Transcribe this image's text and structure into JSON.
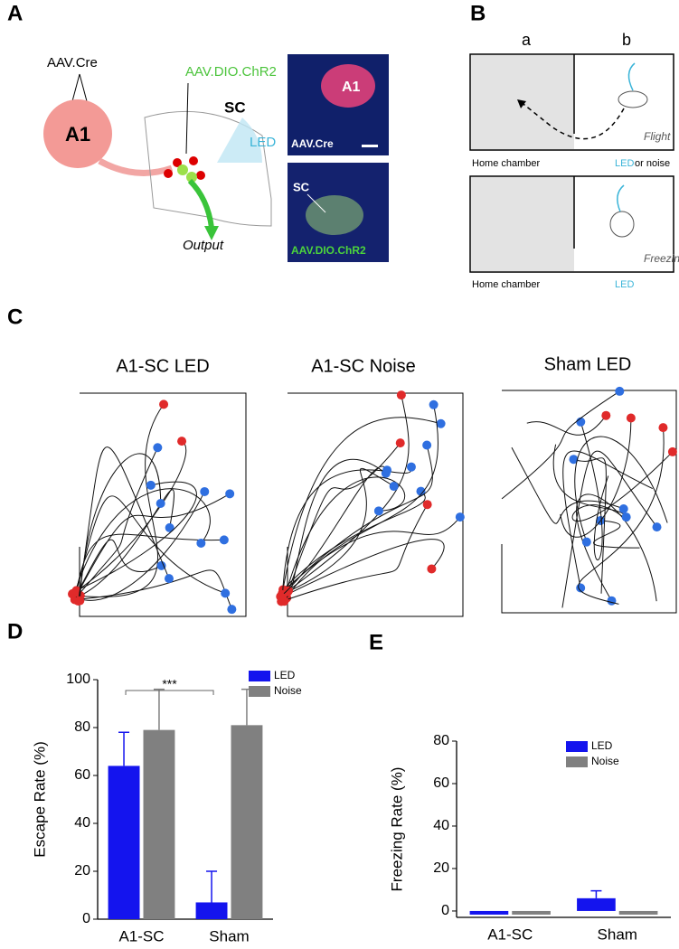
{
  "panel_a": {
    "label": "A",
    "virus_1": "AAV.Cre",
    "region_1": "A1",
    "virus_2": "AAV.DIO.ChR2",
    "region_2": "SC",
    "light": "LED",
    "output": "Output",
    "image_1_region": "A1",
    "image_1_label": "AAV.Cre",
    "image_2_region": "SC",
    "image_2_label": "AAV.DIO.ChR2"
  },
  "panel_b": {
    "label": "B",
    "zone_a": "a",
    "zone_b": "b",
    "flight": "Flight",
    "freezing": "Freezing",
    "home_1": "Home chamber",
    "stim_led": "LED",
    "stim_noise": "or noise",
    "home_2": "Home chamber",
    "stim_led_2": "LED"
  },
  "panel_c": {
    "label": "C",
    "titles": [
      "A1-SC LED",
      "A1-SC Noise",
      "Sham LED"
    ]
  },
  "chart_data": [
    {
      "type": "bar",
      "panel": "D",
      "ylabel": "Escape Rate (%)",
      "categories": [
        "A1-SC",
        "Sham"
      ],
      "series": [
        {
          "name": "LED",
          "color": "#1414ee",
          "values": [
            64,
            7
          ],
          "errors": [
            14,
            13
          ]
        },
        {
          "name": "Noise",
          "color": "#808080",
          "values": [
            79,
            81
          ],
          "errors": [
            17,
            15
          ]
        }
      ],
      "ylim": [
        0,
        100
      ],
      "yticks": [
        0,
        20,
        40,
        60,
        80,
        100
      ],
      "annotation": "***"
    },
    {
      "type": "bar",
      "panel": "E",
      "ylabel": "Freezing Rate (%)",
      "categories": [
        "A1-SC",
        "Sham"
      ],
      "series": [
        {
          "name": "LED",
          "color": "#1414ee",
          "values": [
            0,
            6
          ],
          "errors": [
            0,
            3.5
          ]
        },
        {
          "name": "Noise",
          "color": "#808080",
          "values": [
            0,
            0
          ],
          "errors": [
            0,
            0
          ]
        }
      ],
      "ylim": [
        -3,
        80
      ],
      "yticks": [
        0,
        20,
        40,
        60,
        80
      ]
    }
  ]
}
